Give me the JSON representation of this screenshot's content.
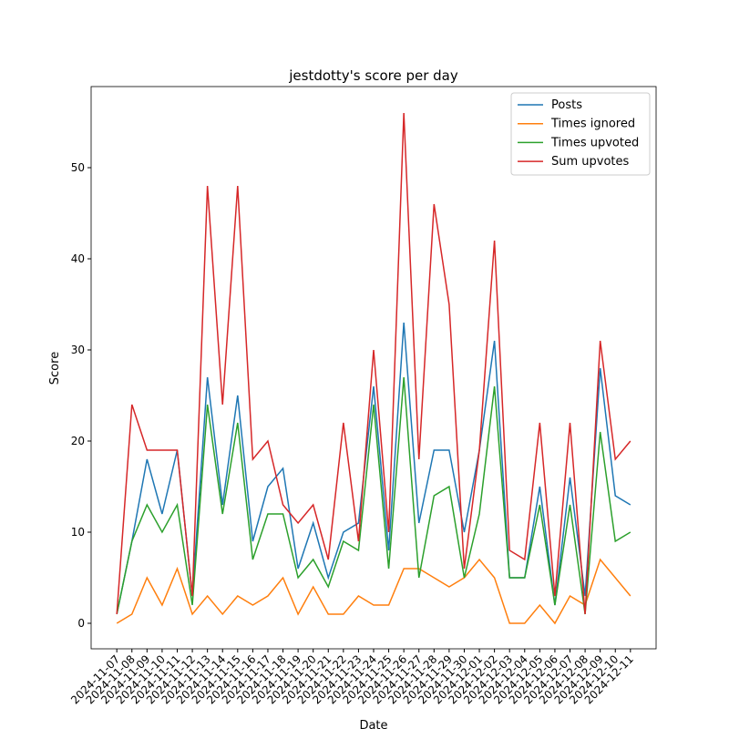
{
  "chart_data": {
    "type": "line",
    "title": "jestdotty's score per day",
    "x_label": "Date",
    "y_label": "Score",
    "categories": [
      "2024-11-07",
      "2024-11-08",
      "2024-11-09",
      "2024-11-10",
      "2024-11-11",
      "2024-11-12",
      "2024-11-13",
      "2024-11-14",
      "2024-11-15",
      "2024-11-16",
      "2024-11-17",
      "2024-11-18",
      "2024-11-19",
      "2024-11-20",
      "2024-11-21",
      "2024-11-22",
      "2024-11-23",
      "2024-11-24",
      "2024-11-25",
      "2024-11-26",
      "2024-11-27",
      "2024-11-28",
      "2024-11-29",
      "2024-11-30",
      "2024-12-01",
      "2024-12-02",
      "2024-12-03",
      "2024-12-04",
      "2024-12-05",
      "2024-12-06",
      "2024-12-07",
      "2024-12-08",
      "2024-12-09",
      "2024-12-10",
      "2024-12-11"
    ],
    "series": [
      {
        "name": "Posts",
        "color": "#1f77b4",
        "values": [
          1,
          9,
          18,
          12,
          19,
          3,
          27,
          13,
          25,
          9,
          15,
          17,
          6,
          11,
          5,
          10,
          11,
          26,
          8,
          33,
          11,
          19,
          19,
          10,
          19,
          31,
          5,
          5,
          15,
          2,
          16,
          3,
          28,
          14,
          13
        ]
      },
      {
        "name": "Times ignored",
        "color": "#ff7f0e",
        "values": [
          0,
          1,
          5,
          2,
          6,
          1,
          3,
          1,
          3,
          2,
          3,
          5,
          1,
          4,
          1,
          1,
          3,
          2,
          2,
          6,
          6,
          5,
          4,
          5,
          7,
          5,
          0,
          0,
          2,
          0,
          3,
          2,
          7,
          5,
          3
        ]
      },
      {
        "name": "Times upvoted",
        "color": "#2ca02c",
        "values": [
          1,
          9,
          13,
          10,
          13,
          2,
          24,
          12,
          22,
          7,
          12,
          12,
          5,
          7,
          4,
          9,
          8,
          24,
          6,
          27,
          5,
          14,
          15,
          5,
          12,
          26,
          5,
          5,
          13,
          2,
          13,
          1,
          21,
          9,
          10
        ]
      },
      {
        "name": "Sum upvotes",
        "color": "#d62728",
        "values": [
          1,
          24,
          19,
          19,
          19,
          3,
          48,
          24,
          48,
          18,
          20,
          13,
          11,
          13,
          7,
          22,
          9,
          30,
          10,
          56,
          18,
          46,
          35,
          6,
          19,
          42,
          8,
          7,
          22,
          3,
          22,
          1,
          31,
          18,
          20
        ]
      }
    ],
    "ylim": [
      -2.8,
      58.9
    ],
    "yticks": [
      0,
      10,
      20,
      30,
      40,
      50
    ],
    "legend": "upper right"
  }
}
